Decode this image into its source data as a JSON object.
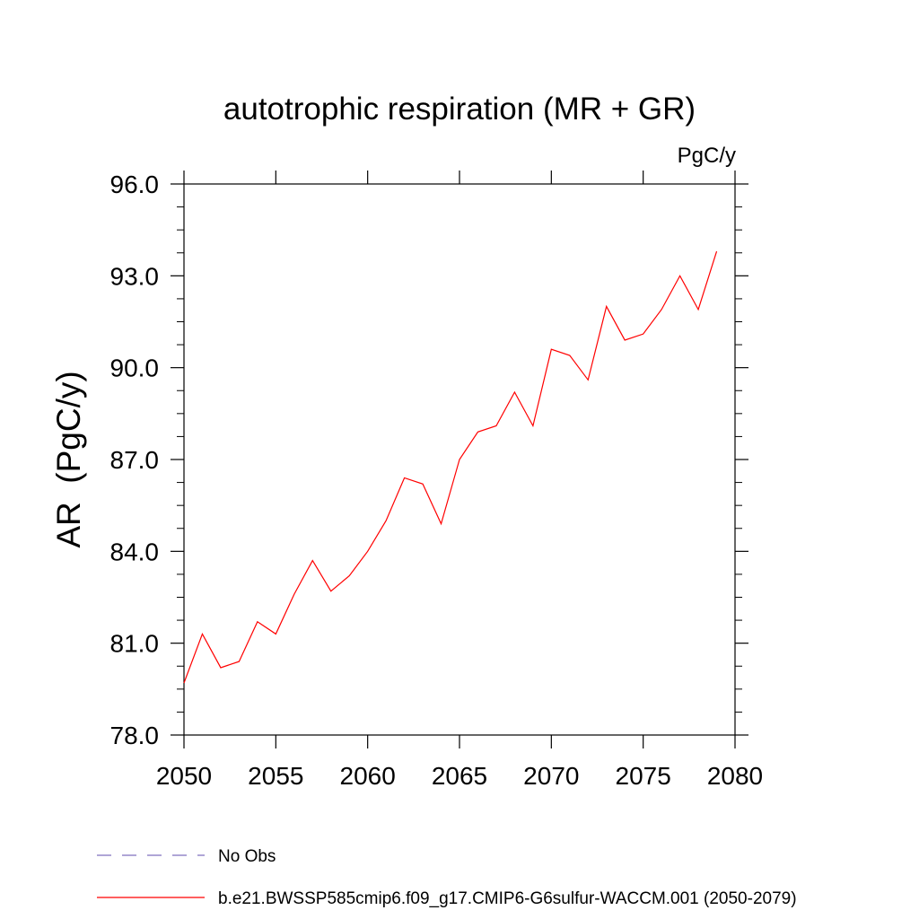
{
  "chart_data": {
    "type": "line",
    "title": "autotrophic respiration (MR + GR)",
    "units_label": "PgC/y",
    "ylabel": "AR  (PgC/y)",
    "xlabel": "",
    "xlim": [
      2050,
      2080
    ],
    "ylim": [
      78.0,
      96.0
    ],
    "x_ticks": [
      2050,
      2055,
      2060,
      2065,
      2070,
      2075,
      2080
    ],
    "x_tick_labels": [
      "2050",
      "2055",
      "2060",
      "2065",
      "2070",
      "2075",
      "2080"
    ],
    "y_ticks": [
      78.0,
      81.0,
      84.0,
      87.0,
      90.0,
      93.0,
      96.0
    ],
    "y_tick_labels": [
      "78.0",
      "81.0",
      "84.0",
      "87.0",
      "90.0",
      "93.0",
      "96.0"
    ],
    "grid": false,
    "legend_position": "bottom",
    "legend": [
      {
        "label": "No Obs",
        "color": "#7f6fbf",
        "style": "dashed"
      },
      {
        "label": "b.e21.BWSSP585cmip6.f09_g17.CMIP6-G6sulfur-WACCM.001 (2050-2079)",
        "color": "#ff0000",
        "style": "solid"
      }
    ],
    "series": [
      {
        "color": "#ff0000",
        "x": [
          2050,
          2051,
          2052,
          2053,
          2054,
          2055,
          2056,
          2057,
          2058,
          2059,
          2060,
          2061,
          2062,
          2063,
          2064,
          2065,
          2066,
          2067,
          2068,
          2069,
          2070,
          2071,
          2072,
          2073,
          2074,
          2075,
          2076,
          2077,
          2078,
          2079
        ],
        "values": [
          79.7,
          81.3,
          80.2,
          80.4,
          81.7,
          81.3,
          82.6,
          83.7,
          82.7,
          83.2,
          84.0,
          85.0,
          86.4,
          86.2,
          84.9,
          87.0,
          87.9,
          88.1,
          89.2,
          88.1,
          90.6,
          90.4,
          89.6,
          92.0,
          90.9,
          91.1,
          91.9,
          93.0,
          91.9,
          93.8
        ]
      }
    ]
  }
}
